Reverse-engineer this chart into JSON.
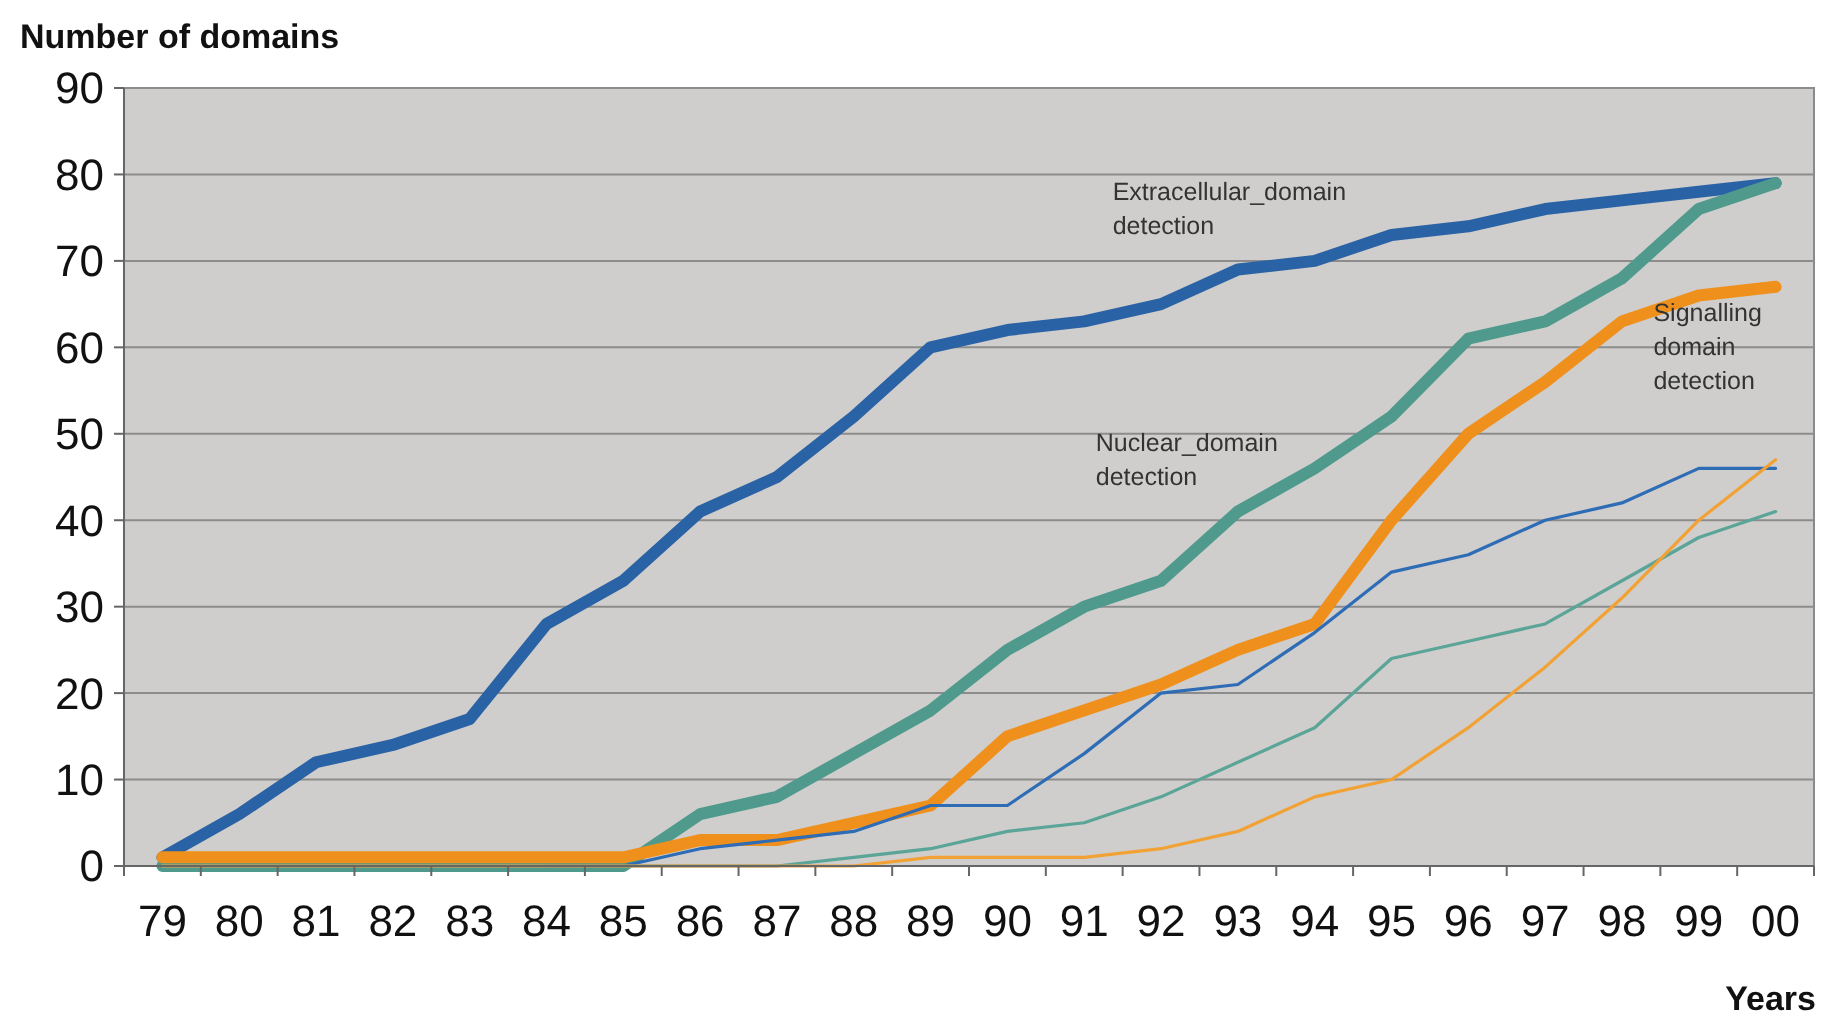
{
  "chart_data": {
    "type": "line",
    "ylabel": "Number of domains",
    "xlabel": "Years",
    "categories": [
      "79",
      "80",
      "81",
      "82",
      "83",
      "84",
      "85",
      "86",
      "87",
      "88",
      "89",
      "90",
      "91",
      "92",
      "93",
      "94",
      "95",
      "96",
      "97",
      "98",
      "99",
      "00"
    ],
    "ylim": [
      0,
      90
    ],
    "yticks": [
      0,
      10,
      20,
      30,
      40,
      50,
      60,
      70,
      80,
      90
    ],
    "grid": "y",
    "marker": "none",
    "line_style": "solid",
    "series": [
      {
        "name": "Extracellular_domain detection",
        "color": "#2a62a6",
        "values": [
          1,
          6,
          12,
          14,
          17,
          28,
          33,
          41,
          45,
          52,
          60,
          62,
          63,
          65,
          69,
          70,
          73,
          74,
          76,
          77,
          78,
          79
        ]
      },
      {
        "name": "Nuclear_domain detection",
        "color": "#4f9a8c",
        "values": [
          0,
          0,
          0,
          0,
          0,
          0,
          0,
          6,
          8,
          13,
          18,
          25,
          30,
          33,
          41,
          46,
          52,
          61,
          63,
          68,
          76,
          79
        ]
      },
      {
        "name": "Signalling domain detection",
        "color": "#f0901c",
        "values": [
          1,
          1,
          1,
          1,
          1,
          1,
          1,
          3,
          3,
          5,
          7,
          15,
          18,
          21,
          25,
          28,
          40,
          50,
          56,
          63,
          66,
          67
        ]
      },
      {
        "color": "#2e6cb6",
        "values": [
          null,
          null,
          null,
          null,
          null,
          0,
          0,
          2,
          3,
          4,
          7,
          7,
          13,
          20,
          21,
          27,
          34,
          36,
          40,
          42,
          46,
          46
        ]
      },
      {
        "color": "#5aa498",
        "values": [
          0,
          0,
          0,
          0,
          0,
          0,
          0,
          0,
          0,
          1,
          2,
          4,
          5,
          8,
          12,
          16,
          24,
          26,
          28,
          33,
          38,
          41
        ]
      },
      {
        "color": "#f2a234",
        "values": [
          0,
          0,
          0,
          0,
          0,
          0,
          0,
          0,
          0,
          0,
          1,
          1,
          1,
          2,
          4,
          8,
          10,
          16,
          23,
          31,
          40,
          47
        ]
      }
    ]
  }
}
